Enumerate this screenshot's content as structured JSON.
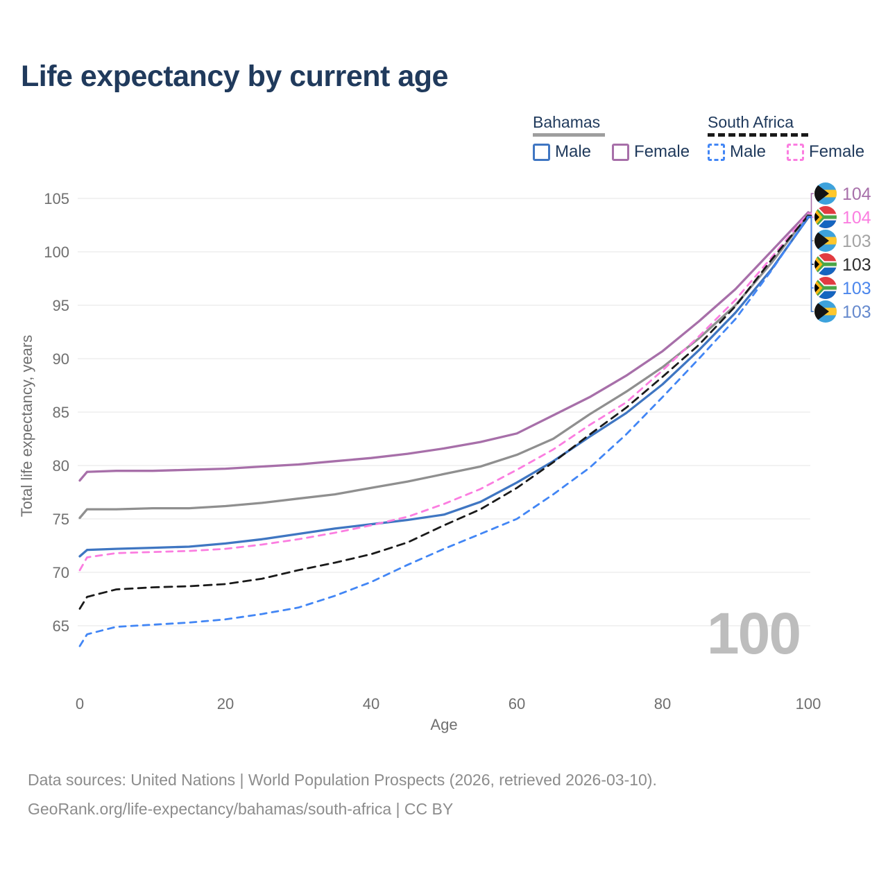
{
  "title": "Life expectancy by current age",
  "watermark": "100",
  "colors": {
    "title_text": "#203a5c",
    "legend_text": "#203a5c",
    "axis_text": "#6f6f6f",
    "grid": "#ebebeb",
    "footer_text": "#8c8c8c",
    "watermark": "#bdbdbd",
    "bahamas_male": "#3f76c2",
    "bahamas_female": "#a76fa9",
    "bahamas_all": "#8f8f8f",
    "south_africa_male": "#4286f5",
    "south_africa_female": "#fb7de0",
    "south_africa_all": "#1a1a1a"
  },
  "legend": {
    "groups": [
      {
        "name": "Bahamas",
        "underline_color": "#9e9e9e",
        "underline_style": "solid",
        "items": [
          {
            "label": "Male",
            "color": "#3f76c2",
            "dashed": false
          },
          {
            "label": "Female",
            "color": "#a76fa9",
            "dashed": false
          }
        ]
      },
      {
        "name": "South Africa",
        "underline_color": "#1a1a1a",
        "underline_style": "dashed",
        "items": [
          {
            "label": "Male",
            "color": "#4286f5",
            "dashed": true
          },
          {
            "label": "Female",
            "color": "#fb7de0",
            "dashed": true
          }
        ]
      }
    ]
  },
  "footer": {
    "line1": "Data sources: United Nations | World Population Prospects (2026, retrieved 2026-03-10).",
    "line2": "GeoRank.org/life-expectancy/bahamas/south-africa | CC BY"
  },
  "flags": {
    "bahamas": {
      "aquamarine": "#3da2dc",
      "gold": "#ffc72c",
      "black": "#141414"
    },
    "south_africa": {
      "red": "#e23b41",
      "blue": "#1565c0",
      "green": "#4aa546",
      "gold": "#ffb612",
      "black": "#000000",
      "white": "#ffffff"
    }
  },
  "chart_data": {
    "type": "line",
    "title": "Life expectancy by current age",
    "xlabel": "Age",
    "ylabel": "Total life expectancy, years",
    "x_ticks": [
      0,
      20,
      40,
      60,
      80,
      100
    ],
    "y_ticks": [
      65,
      70,
      75,
      80,
      85,
      90,
      95,
      100,
      105
    ],
    "xlim": [
      0,
      100
    ],
    "ylim": [
      63,
      105.5
    ],
    "grid": "horizontal-only",
    "legend_position": "top-right",
    "ages": [
      0,
      1,
      5,
      10,
      15,
      20,
      25,
      30,
      35,
      40,
      45,
      50,
      55,
      60,
      65,
      70,
      75,
      80,
      85,
      90,
      95,
      100
    ],
    "series": [
      {
        "id": "bahamas-female",
        "name": "Bahamas Female",
        "country": "Bahamas",
        "sex": "Female",
        "line": "solid",
        "color": "#a76fa9",
        "values": [
          78.6,
          79.4,
          79.5,
          79.5,
          79.6,
          79.7,
          79.9,
          80.1,
          80.4,
          80.7,
          81.1,
          81.6,
          82.2,
          83.0,
          84.7,
          86.4,
          88.4,
          90.7,
          93.5,
          96.5,
          100.1,
          103.7
        ],
        "end_label": "104",
        "end_label_color": "#a76fa9",
        "flag": "bahamas",
        "row": 0
      },
      {
        "id": "bahamas-all",
        "name": "Bahamas Both sexes",
        "country": "Bahamas",
        "sex": "Both",
        "line": "solid",
        "color": "#8f8f8f",
        "values": [
          75.1,
          75.9,
          75.9,
          76.0,
          76.0,
          76.2,
          76.5,
          76.9,
          77.3,
          77.9,
          78.5,
          79.2,
          79.9,
          81.0,
          82.5,
          84.8,
          86.9,
          89.2,
          91.9,
          95.0,
          99.0,
          103.5
        ],
        "end_label": "103",
        "end_label_color": "#a3a3a3",
        "flag": "bahamas",
        "row": 2
      },
      {
        "id": "bahamas-male",
        "name": "Bahamas Male",
        "country": "Bahamas",
        "sex": "Male",
        "line": "solid",
        "color": "#3f76c2",
        "values": [
          71.5,
          72.1,
          72.2,
          72.3,
          72.4,
          72.7,
          73.1,
          73.6,
          74.1,
          74.5,
          74.9,
          75.4,
          76.6,
          78.4,
          80.4,
          82.7,
          84.9,
          87.6,
          90.8,
          94.3,
          98.4,
          103.2
        ],
        "end_label": "103",
        "end_label_color": "#6589cd",
        "flag": "bahamas",
        "row": 5
      },
      {
        "id": "south-africa-female",
        "name": "South Africa Female",
        "country": "South Africa",
        "sex": "Female",
        "line": "dashed",
        "color": "#fb7de0",
        "values": [
          70.2,
          71.4,
          71.8,
          71.9,
          72.0,
          72.2,
          72.6,
          73.1,
          73.7,
          74.4,
          75.2,
          76.4,
          77.8,
          79.6,
          81.5,
          83.8,
          85.9,
          88.9,
          92.1,
          95.5,
          99.5,
          103.6
        ],
        "end_label": "104",
        "end_label_color": "#fb7de0",
        "flag": "south_africa",
        "row": 1
      },
      {
        "id": "south-africa-all",
        "name": "South Africa Both sexes",
        "country": "South Africa",
        "sex": "Both",
        "line": "dashed",
        "color": "#1a1a1a",
        "values": [
          66.6,
          67.7,
          68.4,
          68.6,
          68.7,
          68.9,
          69.4,
          70.2,
          70.9,
          71.7,
          72.8,
          74.4,
          75.9,
          77.9,
          80.3,
          82.9,
          85.4,
          88.3,
          91.3,
          94.9,
          99.3,
          103.4
        ],
        "end_label": "103",
        "end_label_color": "#2f2f2f",
        "flag": "south_africa",
        "row": 3
      },
      {
        "id": "south-africa-male",
        "name": "South Africa Male",
        "country": "South Africa",
        "sex": "Male",
        "line": "dashed",
        "color": "#4286f5",
        "values": [
          63.1,
          64.2,
          64.9,
          65.1,
          65.3,
          65.6,
          66.1,
          66.7,
          67.8,
          69.1,
          70.7,
          72.2,
          73.6,
          75.0,
          77.3,
          79.8,
          82.9,
          86.4,
          90.0,
          93.7,
          98.3,
          103.3
        ],
        "end_label": "103",
        "end_label_color": "#4b86ec",
        "flag": "south_africa",
        "row": 4
      }
    ]
  }
}
